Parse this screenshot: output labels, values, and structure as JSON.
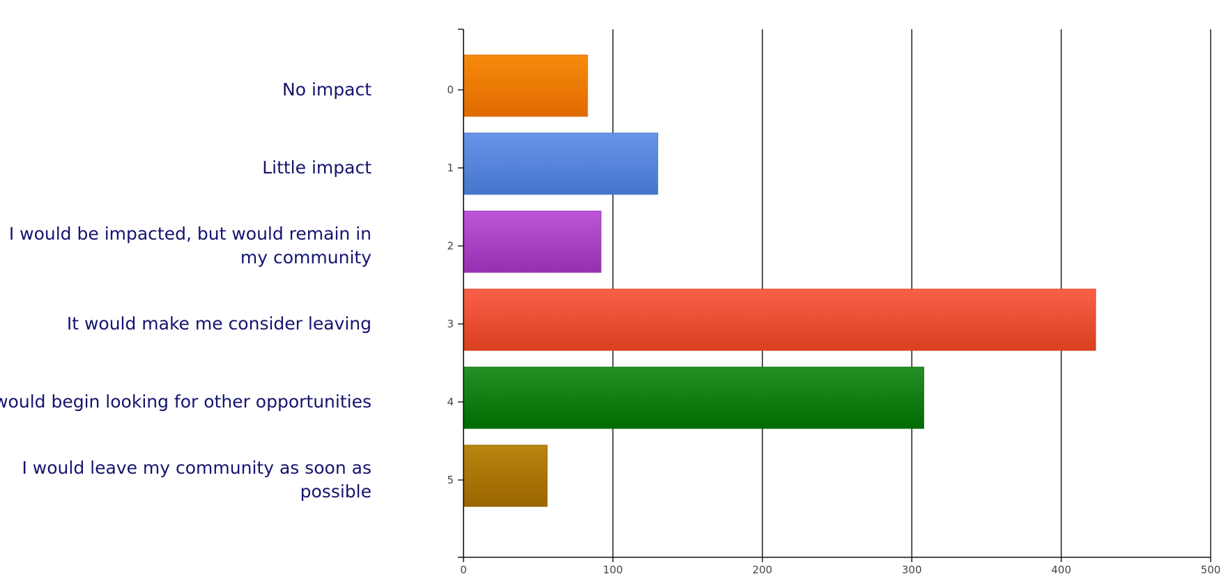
{
  "chart_data": {
    "type": "bar",
    "orientation": "horizontal",
    "title": "",
    "xlabel": "",
    "ylabel": "",
    "categories": [
      "No impact",
      "Little impact",
      "I would be impacted, but would remain in my community",
      "It would make me consider leaving",
      "I would begin looking for other opportunities",
      "I would leave my community as soon as possible"
    ],
    "category_indices": [
      "0",
      "1",
      "2",
      "3",
      "4",
      "5"
    ],
    "values": [
      83,
      130,
      92,
      423,
      308,
      56
    ],
    "xlim": [
      0,
      500
    ],
    "xticks": [
      0,
      100,
      200,
      300,
      400,
      500
    ],
    "grid": true,
    "legend": "none",
    "colors": [
      [
        "#f78a0c",
        "#e06a00"
      ],
      [
        "#6895ea",
        "#4576cc"
      ],
      [
        "#be55d8",
        "#9530b0"
      ],
      [
        "#fa6048",
        "#d9401f"
      ],
      [
        "#259025",
        "#006b00"
      ],
      [
        "#b98610",
        "#9a6500"
      ]
    ]
  }
}
